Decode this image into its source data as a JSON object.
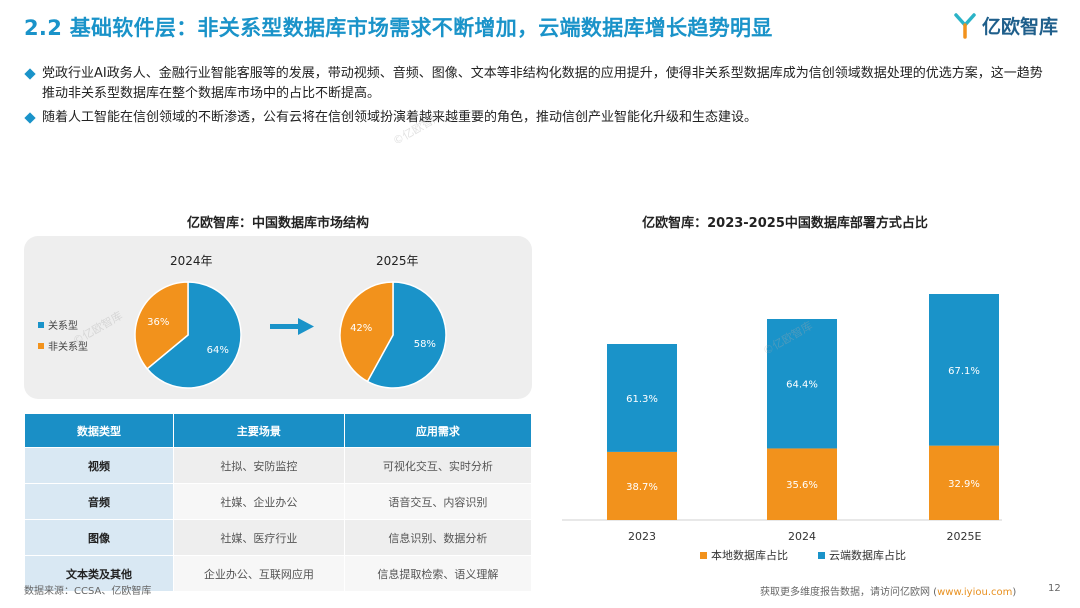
{
  "header": {
    "title": "2.2 基础软件层：非关系型数据库市场需求不断增加，云端数据库增长趋势明显",
    "logo_text": "亿欧智库"
  },
  "bullets": [
    "党政行业AI政务人、金融行业智能客服等的发展，带动视频、音频、图像、文本等非结构化数据的应用提升，使得非关系型数据库成为信创领域数据处理的优选方案，这一趋势推动非关系型数据库在整个数据库市场中的占比不断提高。",
    "随着人工智能在信创领域的不断渗透，公有云将在信创领域扮演着越来越重要的角色，推动信创产业智能化升级和生态建设。"
  ],
  "pie_section": {
    "title": "亿欧智库：中国数据库市场结构",
    "legend": [
      "关系型",
      "非关系型"
    ]
  },
  "table": {
    "headers": [
      "数据类型",
      "主要场景",
      "应用需求"
    ],
    "rows": [
      [
        "视频",
        "社拟、安防监控",
        "可视化交互、实时分析"
      ],
      [
        "音频",
        "社媒、企业办公",
        "语音交互、内容识别"
      ],
      [
        "图像",
        "社媒、医疗行业",
        "信息识别、数据分析"
      ],
      [
        "文本类及其他",
        "企业办公、互联网应用",
        "信息提取检索、语义理解"
      ]
    ]
  },
  "chart_data": [
    {
      "type": "pie",
      "title": "2024年",
      "categories": [
        "关系型",
        "非关系型"
      ],
      "values": [
        64,
        36
      ],
      "labels": [
        "64%",
        "36%"
      ]
    },
    {
      "type": "pie",
      "title": "2025年",
      "categories": [
        "关系型",
        "非关系型"
      ],
      "values": [
        58,
        42
      ],
      "labels": [
        "58%",
        "42%"
      ]
    },
    {
      "type": "bar",
      "stacked": true,
      "title": "亿欧智库：2023-2025中国数据库部署方式占比",
      "categories": [
        "2023",
        "2024",
        "2025E"
      ],
      "series": [
        {
          "name": "本地数据库占比",
          "values": [
            38.7,
            35.6,
            32.9
          ],
          "labels": [
            "38.7%",
            "35.6%",
            "32.9%"
          ]
        },
        {
          "name": "云端数据库占比",
          "values": [
            61.3,
            64.4,
            67.1
          ],
          "labels": [
            "61.3%",
            "64.4%",
            "67.1%"
          ]
        }
      ],
      "legend": [
        "本地数据库占比",
        "云端数据库占比"
      ],
      "note": "bar heights increase year over year"
    }
  ],
  "colors": {
    "blue": "#1a93c9",
    "orange": "#f2921c",
    "title": "#1a93c9",
    "table_header": "#1a8fc6"
  },
  "footer": {
    "source": "数据来源：CCSA、亿欧智库",
    "more_prefix": "获取更多维度报告数据，请访问亿欧网 (",
    "more_link": "www.iyiou.com",
    "more_suffix": ")",
    "page": "12"
  }
}
